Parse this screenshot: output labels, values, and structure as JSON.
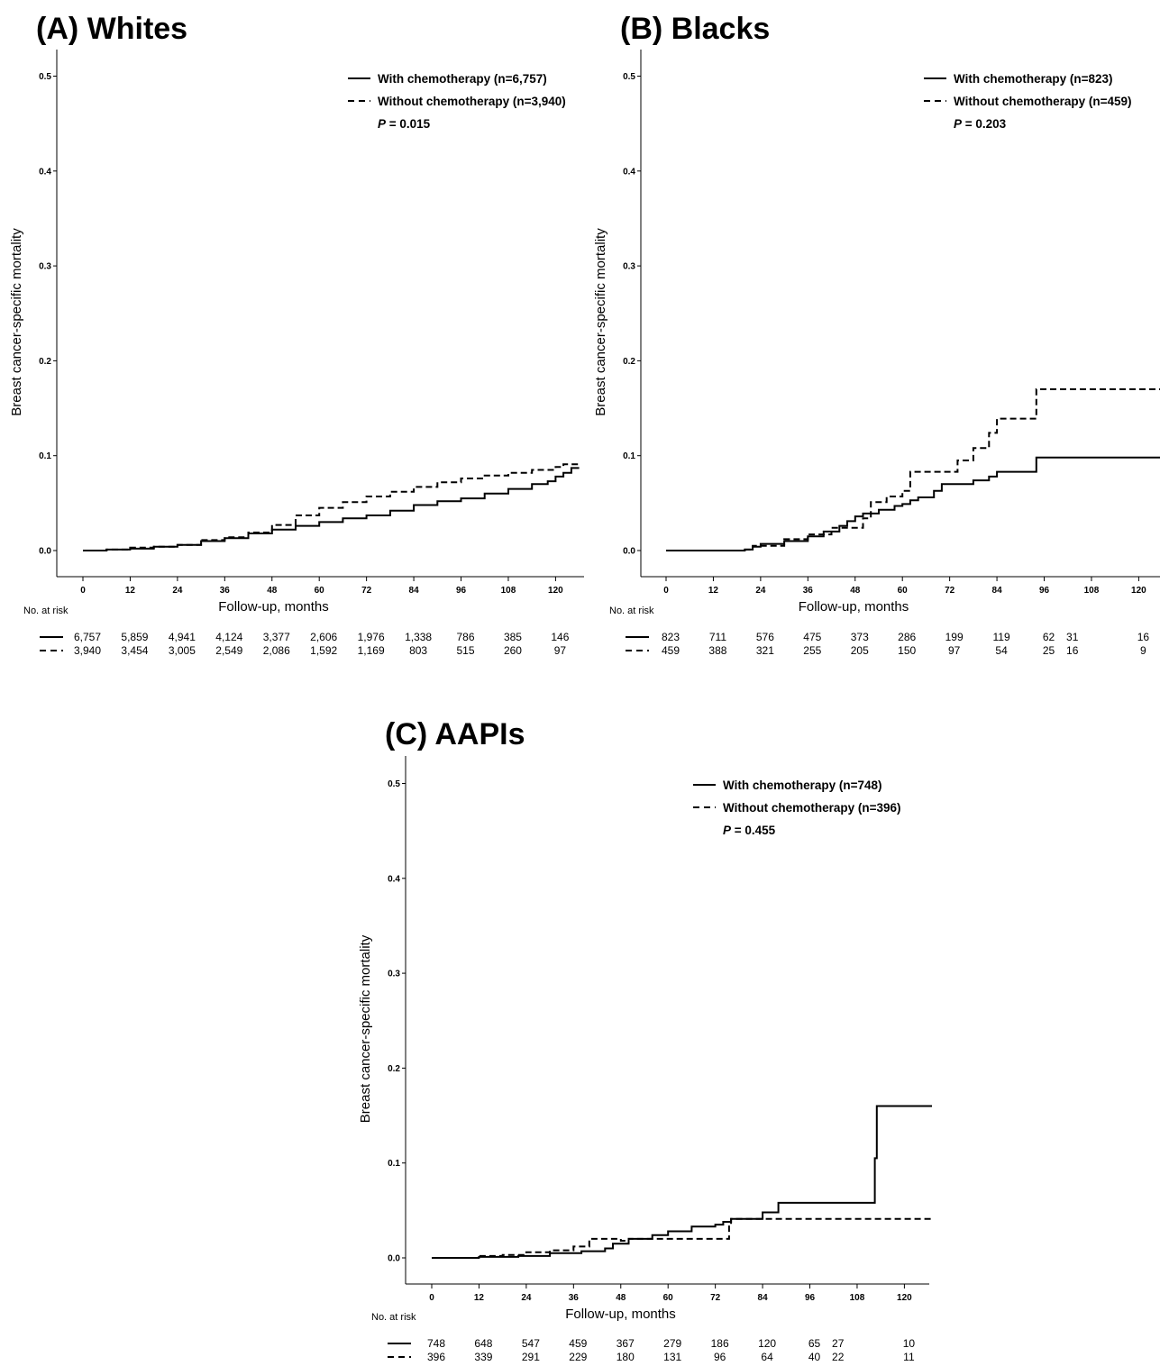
{
  "chart_data": [
    {
      "type": "line",
      "title": "(A) Whites",
      "xlabel": "Follow-up, months",
      "ylabel": "Breast cancer-specific mortality",
      "x_ticks": [
        0,
        12,
        24,
        36,
        48,
        60,
        72,
        84,
        96,
        108,
        120
      ],
      "y_ticks": [
        "0.0",
        "0.1",
        "0.2",
        "0.3",
        "0.4",
        "0.5"
      ],
      "xlim": [
        -7,
        127
      ],
      "ylim": [
        -0.027,
        0.53
      ],
      "grid": false,
      "legend_position": "top-right",
      "p_value_label": "P",
      "p_value_text": " = 0.015",
      "risk_table_label": "No. at risk",
      "series": [
        {
          "name": "With chemotherapy (n=6,757)",
          "style": "solid",
          "points": [
            [
              0,
              0
            ],
            [
              6,
              0.001
            ],
            [
              12,
              0.002
            ],
            [
              18,
              0.004
            ],
            [
              24,
              0.006
            ],
            [
              30,
              0.01
            ],
            [
              36,
              0.013
            ],
            [
              42,
              0.018
            ],
            [
              48,
              0.022
            ],
            [
              54,
              0.026
            ],
            [
              60,
              0.03
            ],
            [
              66,
              0.034
            ],
            [
              72,
              0.037
            ],
            [
              78,
              0.042
            ],
            [
              84,
              0.048
            ],
            [
              90,
              0.052
            ],
            [
              96,
              0.055
            ],
            [
              102,
              0.06
            ],
            [
              108,
              0.065
            ],
            [
              114,
              0.07
            ],
            [
              118,
              0.073
            ],
            [
              120,
              0.078
            ],
            [
              122,
              0.082
            ],
            [
              124,
              0.087
            ],
            [
              126,
              0.087
            ]
          ]
        },
        {
          "name": "Without chemotherapy (n=3,940)",
          "style": "dashed",
          "points": [
            [
              0,
              0
            ],
            [
              6,
              0.001
            ],
            [
              12,
              0.003
            ],
            [
              18,
              0.004
            ],
            [
              24,
              0.006
            ],
            [
              30,
              0.011
            ],
            [
              36,
              0.014
            ],
            [
              42,
              0.019
            ],
            [
              48,
              0.027
            ],
            [
              54,
              0.037
            ],
            [
              60,
              0.045
            ],
            [
              66,
              0.051
            ],
            [
              72,
              0.057
            ],
            [
              78,
              0.062
            ],
            [
              84,
              0.067
            ],
            [
              90,
              0.072
            ],
            [
              96,
              0.076
            ],
            [
              102,
              0.079
            ],
            [
              108,
              0.082
            ],
            [
              114,
              0.085
            ],
            [
              120,
              0.088
            ],
            [
              122,
              0.091
            ],
            [
              126,
              0.091
            ]
          ]
        }
      ],
      "at_risk": [
        {
          "x": [
            0,
            12,
            24,
            36,
            48,
            60,
            72,
            84,
            96,
            108,
            120
          ],
          "values": [
            "6,757",
            "5,859",
            "4,941",
            "4,124",
            "3,377",
            "2,606",
            "1,976",
            "1,338",
            "786",
            "385",
            "146"
          ]
        },
        {
          "x": [
            0,
            12,
            24,
            36,
            48,
            60,
            72,
            84,
            96,
            108,
            120
          ],
          "values": [
            "3,940",
            "3,454",
            "3,005",
            "2,549",
            "2,086",
            "1,592",
            "1,169",
            "803",
            "515",
            "260",
            "97"
          ]
        }
      ]
    },
    {
      "type": "line",
      "title": "(B) Blacks",
      "xlabel": "Follow-up, months",
      "ylabel": "Breast cancer-specific mortality",
      "x_ticks": [
        0,
        12,
        24,
        36,
        48,
        60,
        72,
        84,
        96,
        108,
        120
      ],
      "y_ticks": [
        "0.0",
        "0.1",
        "0.2",
        "0.3",
        "0.4",
        "0.5"
      ],
      "xlim": [
        -7,
        127
      ],
      "ylim": [
        -0.027,
        0.53
      ],
      "grid": false,
      "legend_position": "top-right",
      "p_value_label": "P",
      "p_value_text": " = 0.203",
      "risk_table_label": "No. at risk",
      "series": [
        {
          "name": "With chemotherapy (n=823)",
          "style": "solid",
          "points": [
            [
              0,
              0
            ],
            [
              20,
              0.001
            ],
            [
              22,
              0.004
            ],
            [
              24,
              0.007
            ],
            [
              30,
              0.01
            ],
            [
              36,
              0.015
            ],
            [
              40,
              0.02
            ],
            [
              44,
              0.026
            ],
            [
              46,
              0.031
            ],
            [
              48,
              0.036
            ],
            [
              50,
              0.039
            ],
            [
              54,
              0.043
            ],
            [
              58,
              0.047
            ],
            [
              60,
              0.049
            ],
            [
              62,
              0.053
            ],
            [
              64,
              0.056
            ],
            [
              68,
              0.063
            ],
            [
              70,
              0.07
            ],
            [
              78,
              0.074
            ],
            [
              82,
              0.078
            ],
            [
              84,
              0.083
            ],
            [
              94,
              0.098
            ],
            [
              128,
              0.098
            ]
          ]
        },
        {
          "name": "Without chemotherapy (n=459)",
          "style": "dashed",
          "points": [
            [
              0,
              0
            ],
            [
              20,
              0.001
            ],
            [
              22,
              0.005
            ],
            [
              30,
              0.012
            ],
            [
              36,
              0.017
            ],
            [
              42,
              0.024
            ],
            [
              50,
              0.034
            ],
            [
              52,
              0.051
            ],
            [
              56,
              0.057
            ],
            [
              60,
              0.063
            ],
            [
              62,
              0.083
            ],
            [
              72,
              0.083
            ],
            [
              74,
              0.095
            ],
            [
              78,
              0.108
            ],
            [
              82,
              0.124
            ],
            [
              84,
              0.139
            ],
            [
              94,
              0.17
            ],
            [
              128,
              0.17
            ]
          ]
        }
      ],
      "at_risk": [
        {
          "x": [
            0,
            12,
            24,
            36,
            48,
            60,
            72,
            84,
            96,
            102,
            120
          ],
          "values": [
            "823",
            "711",
            "576",
            "475",
            "373",
            "286",
            "199",
            "119",
            "62",
            "31",
            "16"
          ]
        },
        {
          "x": [
            0,
            12,
            24,
            36,
            48,
            60,
            72,
            84,
            96,
            102,
            120
          ],
          "values": [
            "459",
            "388",
            "321",
            "255",
            "205",
            "150",
            "97",
            "54",
            "25",
            "16",
            "9"
          ]
        }
      ]
    },
    {
      "type": "line",
      "title": "(C) AAPIs",
      "xlabel": "Follow-up, months",
      "ylabel": "Breast cancer-specific mortality",
      "x_ticks": [
        0,
        12,
        24,
        36,
        48,
        60,
        72,
        84,
        96,
        108,
        120
      ],
      "y_ticks": [
        "0.0",
        "0.1",
        "0.2",
        "0.3",
        "0.4",
        "0.5"
      ],
      "xlim": [
        -7,
        127
      ],
      "ylim": [
        -0.027,
        0.53
      ],
      "grid": false,
      "legend_position": "top-right",
      "p_value_label": "P",
      "p_value_text": " = 0.455",
      "risk_table_label": "No. at risk",
      "series": [
        {
          "name": "With chemotherapy (n=748)",
          "style": "solid",
          "points": [
            [
              0,
              0
            ],
            [
              12,
              0.001
            ],
            [
              22,
              0.002
            ],
            [
              30,
              0.005
            ],
            [
              38,
              0.007
            ],
            [
              44,
              0.01
            ],
            [
              46,
              0.015
            ],
            [
              50,
              0.02
            ],
            [
              56,
              0.024
            ],
            [
              60,
              0.028
            ],
            [
              66,
              0.033
            ],
            [
              72,
              0.035
            ],
            [
              74,
              0.038
            ],
            [
              76,
              0.041
            ],
            [
              84,
              0.048
            ],
            [
              88,
              0.058
            ],
            [
              112,
              0.058
            ],
            [
              112.5,
              0.105
            ],
            [
              113,
              0.16
            ],
            [
              127,
              0.16
            ]
          ]
        },
        {
          "name": "Without chemotherapy (n=396)",
          "style": "dashed",
          "points": [
            [
              0,
              0
            ],
            [
              12,
              0.002
            ],
            [
              18,
              0.003
            ],
            [
              24,
              0.006
            ],
            [
              30,
              0.008
            ],
            [
              36,
              0.012
            ],
            [
              40,
              0.02
            ],
            [
              48,
              0.018
            ],
            [
              50,
              0.02
            ],
            [
              75,
              0.02
            ],
            [
              75.5,
              0.035
            ],
            [
              76,
              0.041
            ],
            [
              127,
              0.041
            ]
          ]
        }
      ],
      "at_risk": [
        {
          "x": [
            0,
            12,
            24,
            36,
            48,
            60,
            72,
            84,
            96,
            102,
            120
          ],
          "values": [
            "748",
            "648",
            "547",
            "459",
            "367",
            "279",
            "186",
            "120",
            "65",
            "27",
            "10"
          ]
        },
        {
          "x": [
            0,
            12,
            24,
            36,
            48,
            60,
            72,
            84,
            96,
            102,
            120
          ],
          "values": [
            "396",
            "339",
            "291",
            "229",
            "180",
            "131",
            "96",
            "64",
            "40",
            "22",
            "11"
          ]
        }
      ]
    }
  ]
}
